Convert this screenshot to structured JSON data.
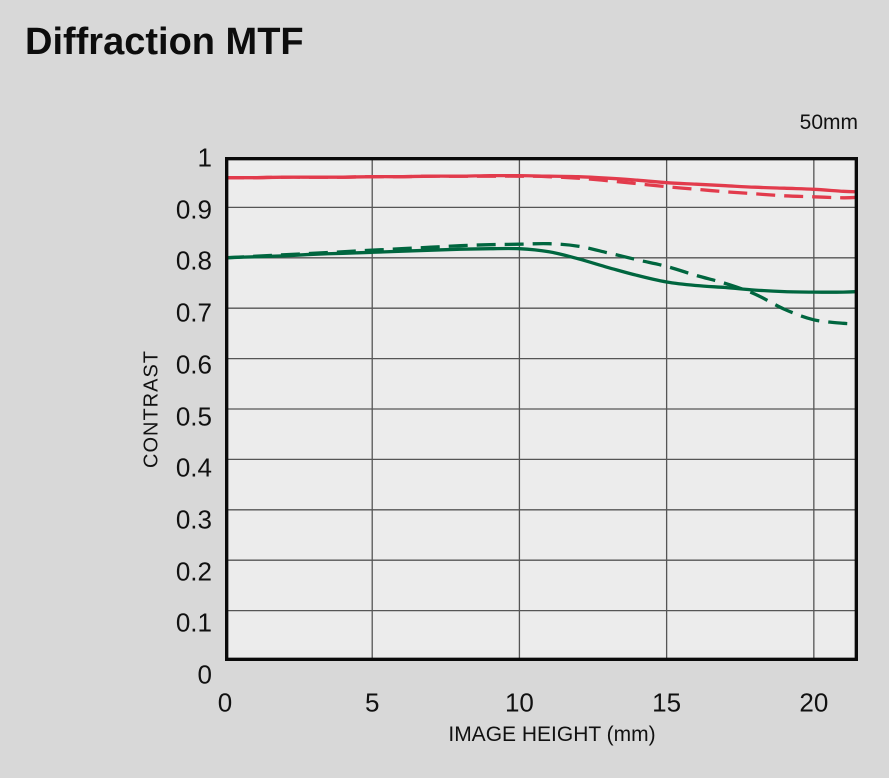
{
  "page": {
    "title": "Diffraction MTF",
    "background_color": "#d8d8d8"
  },
  "chart_data": {
    "type": "line",
    "title": "Diffraction MTF",
    "annotation": "50mm",
    "xlabel": "IMAGE HEIGHT (mm)",
    "ylabel": "CONTRAST",
    "xlim": [
      0,
      21.5
    ],
    "ylim": [
      0,
      1
    ],
    "x_ticks": [
      0,
      5,
      10,
      15,
      20
    ],
    "x_tick_labels": [
      "0",
      "5",
      "10",
      "15",
      "20"
    ],
    "y_ticks": [
      0,
      0.1,
      0.2,
      0.3,
      0.4,
      0.5,
      0.6,
      0.7,
      0.8,
      0.9,
      1
    ],
    "y_tick_labels": [
      "0",
      "0.1",
      "0.2",
      "0.3",
      "0.4",
      "0.5",
      "0.6",
      "0.7",
      "0.8",
      "0.9",
      "1"
    ],
    "grid": true,
    "legend": "none",
    "plot_background": "#ececec",
    "grid_color": "#555555",
    "frame_color": "#0a0a0a",
    "x": [
      0,
      1,
      2,
      3,
      4,
      5,
      6,
      7,
      8,
      9,
      10,
      11,
      12,
      13,
      14,
      15,
      16,
      17,
      18,
      19,
      20,
      21,
      21.5
    ],
    "series": [
      {
        "name": "red-solid",
        "color": "#e23b4c",
        "style": "solid",
        "values": [
          0.959,
          0.959,
          0.96,
          0.96,
          0.96,
          0.961,
          0.961,
          0.962,
          0.962,
          0.963,
          0.963,
          0.962,
          0.961,
          0.958,
          0.954,
          0.949,
          0.946,
          0.943,
          0.94,
          0.938,
          0.936,
          0.932,
          0.931
        ]
      },
      {
        "name": "red-dashed",
        "color": "#e23b4c",
        "style": "dashed",
        "values": [
          0.959,
          0.959,
          0.96,
          0.96,
          0.96,
          0.961,
          0.961,
          0.962,
          0.962,
          0.962,
          0.962,
          0.961,
          0.958,
          0.953,
          0.947,
          0.941,
          0.936,
          0.931,
          0.927,
          0.923,
          0.921,
          0.919,
          0.92
        ]
      },
      {
        "name": "green-solid",
        "color": "#00663f",
        "style": "solid",
        "values": [
          0.8,
          0.802,
          0.804,
          0.807,
          0.809,
          0.811,
          0.813,
          0.815,
          0.817,
          0.818,
          0.818,
          0.812,
          0.798,
          0.781,
          0.765,
          0.752,
          0.745,
          0.741,
          0.736,
          0.733,
          0.732,
          0.732,
          0.733
        ]
      },
      {
        "name": "green-dashed",
        "color": "#00663f",
        "style": "dashed",
        "values": [
          0.8,
          0.803,
          0.806,
          0.809,
          0.812,
          0.815,
          0.818,
          0.821,
          0.824,
          0.826,
          0.827,
          0.828,
          0.823,
          0.81,
          0.796,
          0.783,
          0.765,
          0.749,
          0.728,
          0.698,
          0.677,
          0.67,
          0.669
        ]
      }
    ],
    "style_hints": {
      "line_width": 3.3,
      "dash_pattern": "19 9",
      "grid_line_width": 1.3,
      "frame_width": 3.5
    }
  }
}
